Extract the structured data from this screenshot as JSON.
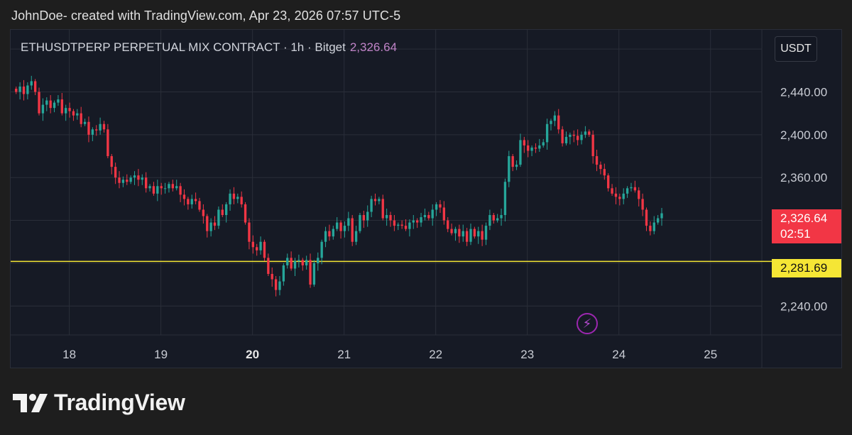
{
  "header": {
    "attribution": "JohnDoe- created with TradingView.com, Apr 23, 2026 07:57 UTC-5"
  },
  "legend": {
    "symbol": "ETHUSDTPERP PERPETUAL MIX CONTRACT · 1h · Bitget",
    "price": "2,326.64"
  },
  "toolbar": {
    "currency": "USDT"
  },
  "price_tag": {
    "price": "2,326.64",
    "countdown": "02:51"
  },
  "level_tag": {
    "price": "2,281.69"
  },
  "brand": {
    "name": "TradingView"
  },
  "icons": {
    "alert": "lightning-bolt-icon",
    "logo": "tradingview-logo-icon"
  },
  "colors": {
    "up": "#26a69a",
    "down": "#f23645",
    "level": "#f5e635",
    "background": "#161a25",
    "grid": "#2a2e39"
  },
  "chart_data": {
    "type": "candlestick",
    "interval": "1h",
    "x_ticks": [
      {
        "label": "18",
        "day": 18,
        "bold": false
      },
      {
        "label": "19",
        "day": 19,
        "bold": false
      },
      {
        "label": "20",
        "day": 20,
        "bold": true
      },
      {
        "label": "21",
        "day": 21,
        "bold": false
      },
      {
        "label": "22",
        "day": 22,
        "bold": false
      },
      {
        "label": "23",
        "day": 23,
        "bold": false
      },
      {
        "label": "24",
        "day": 24,
        "bold": false
      },
      {
        "label": "25",
        "day": 25,
        "bold": false
      }
    ],
    "y_ticks": [
      {
        "label": "2,440.00",
        "value": 2440
      },
      {
        "label": "2,400.00",
        "value": 2400
      },
      {
        "label": "2,360.00",
        "value": 2360
      },
      {
        "label": "2,240.00",
        "value": 2240
      }
    ],
    "y_range": [
      2213,
      2498
    ],
    "x_range": [
      17.36,
      25.56
    ],
    "horizontal_line": 2281.69,
    "last_price": 2326.64,
    "grid": true,
    "candles_start_day": 17.42,
    "candles_step_day": 0.0417,
    "closes": [
      2440,
      2445,
      2438,
      2446,
      2450,
      2440,
      2420,
      2428,
      2432,
      2425,
      2430,
      2433,
      2420,
      2425,
      2422,
      2418,
      2420,
      2410,
      2412,
      2400,
      2405,
      2404,
      2410,
      2405,
      2380,
      2370,
      2360,
      2355,
      2358,
      2356,
      2360,
      2362,
      2358,
      2360,
      2350,
      2352,
      2345,
      2352,
      2350,
      2350,
      2354,
      2350,
      2352,
      2344,
      2340,
      2335,
      2340,
      2338,
      2330,
      2324,
      2310,
      2318,
      2315,
      2330,
      2325,
      2335,
      2345,
      2340,
      2342,
      2335,
      2318,
      2300,
      2295,
      2292,
      2300,
      2285,
      2270,
      2265,
      2255,
      2263,
      2278,
      2285,
      2275,
      2282,
      2283,
      2278,
      2283,
      2260,
      2280,
      2285,
      2300,
      2310,
      2305,
      2312,
      2318,
      2310,
      2315,
      2322,
      2300,
      2310,
      2325,
      2320,
      2328,
      2340,
      2338,
      2340,
      2322,
      2325,
      2320,
      2315,
      2316,
      2315,
      2312,
      2318,
      2320,
      2318,
      2323,
      2325,
      2322,
      2330,
      2335,
      2332,
      2320,
      2312,
      2308,
      2312,
      2305,
      2310,
      2300,
      2312,
      2305,
      2310,
      2302,
      2315,
      2325,
      2320,
      2322,
      2325,
      2356,
      2380,
      2370,
      2372,
      2395,
      2390,
      2385,
      2388,
      2387,
      2390,
      2393,
      2410,
      2413,
      2418,
      2405,
      2392,
      2398,
      2400,
      2399,
      2395,
      2400,
      2403,
      2400,
      2380,
      2372,
      2368,
      2362,
      2350,
      2345,
      2342,
      2340,
      2345,
      2350,
      2351,
      2348,
      2340,
      2330,
      2315,
      2310,
      2318,
      2322,
      2326.64
    ]
  }
}
